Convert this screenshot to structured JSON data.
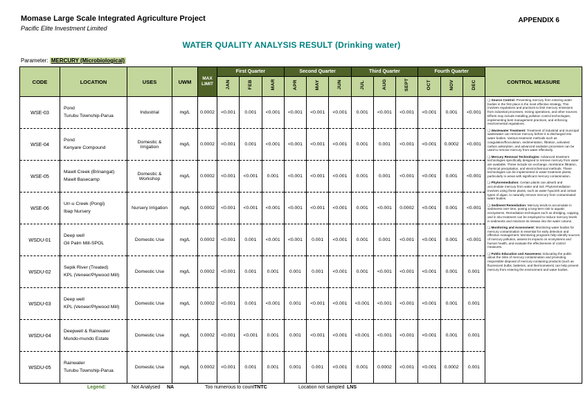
{
  "page": {
    "project_title": "Momase Large Scale Integrated Agriculture Project",
    "company": "Pacific Elite Investment Limited",
    "appendix": "APPENDIX 6",
    "report_title": "WATER QUALITY ANALYSIS RESULT (Drinking water)",
    "parameter_label": "Parameter:",
    "parameter_value": "MERCURY (Microbiological)"
  },
  "colors": {
    "header_light_green": "#c3d69b",
    "header_dark_green": "#4f6228",
    "title_teal": "#008080",
    "legend_green": "#4c7d2b"
  },
  "table": {
    "columns": {
      "code": "CODE",
      "location": "LOCATION",
      "uses": "USES",
      "uwm": "UWM",
      "max_limit": "MAX LIMIT",
      "control_measure": "CONTROL MEASURE"
    },
    "quarters": [
      "First Quarter",
      "Second Quarter",
      "Third Quarter",
      "Fourth Quarter"
    ],
    "months": [
      "JAN",
      "FEB",
      "MAR",
      "APR",
      "MAY",
      "JUN",
      "JUL",
      "AUG",
      "SEPT",
      "OCT",
      "NOV",
      "DEC"
    ],
    "rows": [
      {
        "code": "WSE-03",
        "location": [
          "Pond",
          "Turubu Township-Parua"
        ],
        "uses": "Industrial",
        "uwm": "mg/L",
        "max_limit": "0.0002",
        "values": [
          "<0.001",
          "0.001",
          "<0.001",
          "<0.001",
          "<0.001",
          "<0.001",
          "0.001",
          "<0.001",
          "<0.001",
          "<0.001",
          "0.001",
          "<0.001"
        ]
      },
      {
        "code": "WSE-04",
        "location": [
          "Pond",
          "Kenyare Compound"
        ],
        "uses": "Domestic & Irrigation",
        "uwm": "mg/L",
        "max_limit": "0.0002",
        "values": [
          "<0.001",
          "0.001",
          "<0.001",
          "<0.001",
          "<0.001",
          "<0.001",
          "0.001",
          "0.001",
          "<0.001",
          "<0.001",
          "0.0002",
          "<0.001"
        ]
      },
      {
        "code": "WSE-05",
        "location": [
          "Mawit Creek (Brinangat)",
          "Mawit Basecamp"
        ],
        "uses": "Domestic & Workshop",
        "uwm": "mg/L",
        "max_limit": "0.0002",
        "values": [
          "<0.001",
          "<0.001",
          "0.001",
          "<0.001",
          "<0.001",
          "<0.001",
          "0.001",
          "0.001",
          "<0.001",
          "<0.001",
          "0.001",
          "<0.001"
        ]
      },
      {
        "code": "WSE-06",
        "location": [
          "Urr-u Creek (Pongi)",
          "Ibap Nursery"
        ],
        "uses": "Nursery Irrigation",
        "uwm": "mg/L",
        "max_limit": "0.0002",
        "values": [
          "<0.001",
          "<0.001",
          "<0.001",
          "<0.001",
          "<0.001",
          "<0.001",
          "0.001",
          "<0.001",
          "0.0002",
          "<0.001",
          "0.001",
          "<0.001"
        ]
      },
      {
        "code": "WSDU-01",
        "location": [
          "Deep well",
          "Oil Palm Mill-SPOL"
        ],
        "uses": "Domestic Use",
        "uwm": "mg/L",
        "max_limit": "0.0002",
        "values": [
          "<0.001",
          "0.001",
          "<0.001",
          "<0.001",
          "0.001",
          "<0.001",
          "0.001",
          "0.001",
          "<0.001",
          "<0.001",
          "0.001",
          "<0.001"
        ]
      },
      {
        "code": "WSDU-02",
        "location": [
          "Sepik River (Treated)",
          "KPL (Veneer/Plywood Mill)"
        ],
        "uses": "Domestic Use",
        "uwm": "mg/L",
        "max_limit": "0.0002",
        "values": [
          "<0.001",
          "0.001",
          "0.001",
          "0.001",
          "0.001",
          "<0.001",
          "0.001",
          "<0.001",
          "<0.001",
          "<0.001",
          "0.001",
          "0.001"
        ]
      },
      {
        "code": "WSDU-03",
        "location": [
          "Deep well",
          "KPL (Veneer/Plywood Mill)"
        ],
        "uses": "Domestic Use",
        "uwm": "mg/L",
        "max_limit": "0.0002",
        "values": [
          "<0.001",
          "0.001",
          "<0.001",
          "0.001",
          "<0.001",
          "<0.001",
          "<0.001",
          "<0.001",
          "<0.001",
          "<0.001",
          "0.001",
          "0.001"
        ]
      },
      {
        "code": "WSDU-04",
        "location": [
          "Deepwell & Rainwater",
          "Mundo-mundo Estate"
        ],
        "uses": "Domestic Use",
        "uwm": "mg/L",
        "max_limit": "0.0002",
        "values": [
          "<0.001",
          "<0.001",
          "0.001",
          "0.001",
          "<0.001",
          "<0.001",
          "<0.001",
          "<0.001",
          "<0.001",
          "<0.001",
          "0.001",
          "0.001"
        ]
      },
      {
        "code": "WSDU-05",
        "location": [
          "Rainwater",
          "Turubu Township-Parua"
        ],
        "uses": "Domestic Use",
        "uwm": "mg/L",
        "max_limit": "0.0002",
        "values": [
          "<0.001",
          "0.001",
          "0.001",
          "0.001",
          "0.001",
          "<0.001",
          "0.001",
          "0.0002",
          "<0.001",
          "<0.001",
          "0.0002",
          "0.001"
        ]
      }
    ],
    "control_bullet": "❑",
    "control_measures": [
      {
        "title": "Source Control:",
        "body": "Preventing mercury from entering water bodies in the first place is the most effective strategy. This involves regulations and practices to limit mercury emissions from industrial processes, mining operations, and other sources. Efforts may include installing pollution control technologies, implementing best management practices, and enforcing environmental regulations."
      },
      {
        "title": "Wastewater Treatment:",
        "body": "Treatment of industrial and municipal wastewater can remove mercury before it is discharged into water bodies. Various treatment methods such as coagulation/flocculation, sedimentation, filtration, activated carbon adsorption, and advanced oxidation processes can be used to remove mercury from water effectively."
      },
      {
        "title": "Mercury Removal Technologies:",
        "body": "Advanced treatment technologies specifically designed to remove mercury from water are available. These include ion exchange, membrane filtration, chemical precipitation, and electrochemical methods. These technologies can be implemented in water treatment plants, particularly in areas with significant mercury contamination."
      },
      {
        "title": "Phytoremediation:",
        "body": "Certain plants can absorb and accumulate mercury from water and soil. Phytoremediation involves using these plants, such as water hyacinth and certain types of algae, to naturally remove mercury from contaminated water bodies."
      },
      {
        "title": "Sediment Remediation:",
        "body": "Mercury tends to accumulate in sediments over time, posing a long-term risk to aquatic ecosystems. Remediation techniques such as dredging, capping, and in situ treatment can be employed to reduce mercury levels in sediments and minimize its release into the water column."
      },
      {
        "title": "Monitoring and Assessment:",
        "body": "Monitoring water bodies for mercury contamination is essential for early detection and effective management. Monitoring programs help identify sources of mercury pollution, assess its impacts on ecosystems and human health, and evaluate the effectiveness of control measures."
      },
      {
        "title": "Public Education and Awareness:",
        "body": "Educating the public about the risks of mercury contamination and promoting responsible disposal of mercury-containing products (such as fluorescent bulbs, batteries, and thermometers) can help prevent mercury from entering the environment and water bodies."
      }
    ]
  },
  "legend": {
    "label": "Legend:",
    "items": [
      {
        "text": "Not Analysed",
        "abbr": "NA"
      },
      {
        "text": "Too numerous to count",
        "abbr": "TNTC"
      },
      {
        "text": "Location not sampled",
        "abbr": "LNS"
      }
    ]
  }
}
